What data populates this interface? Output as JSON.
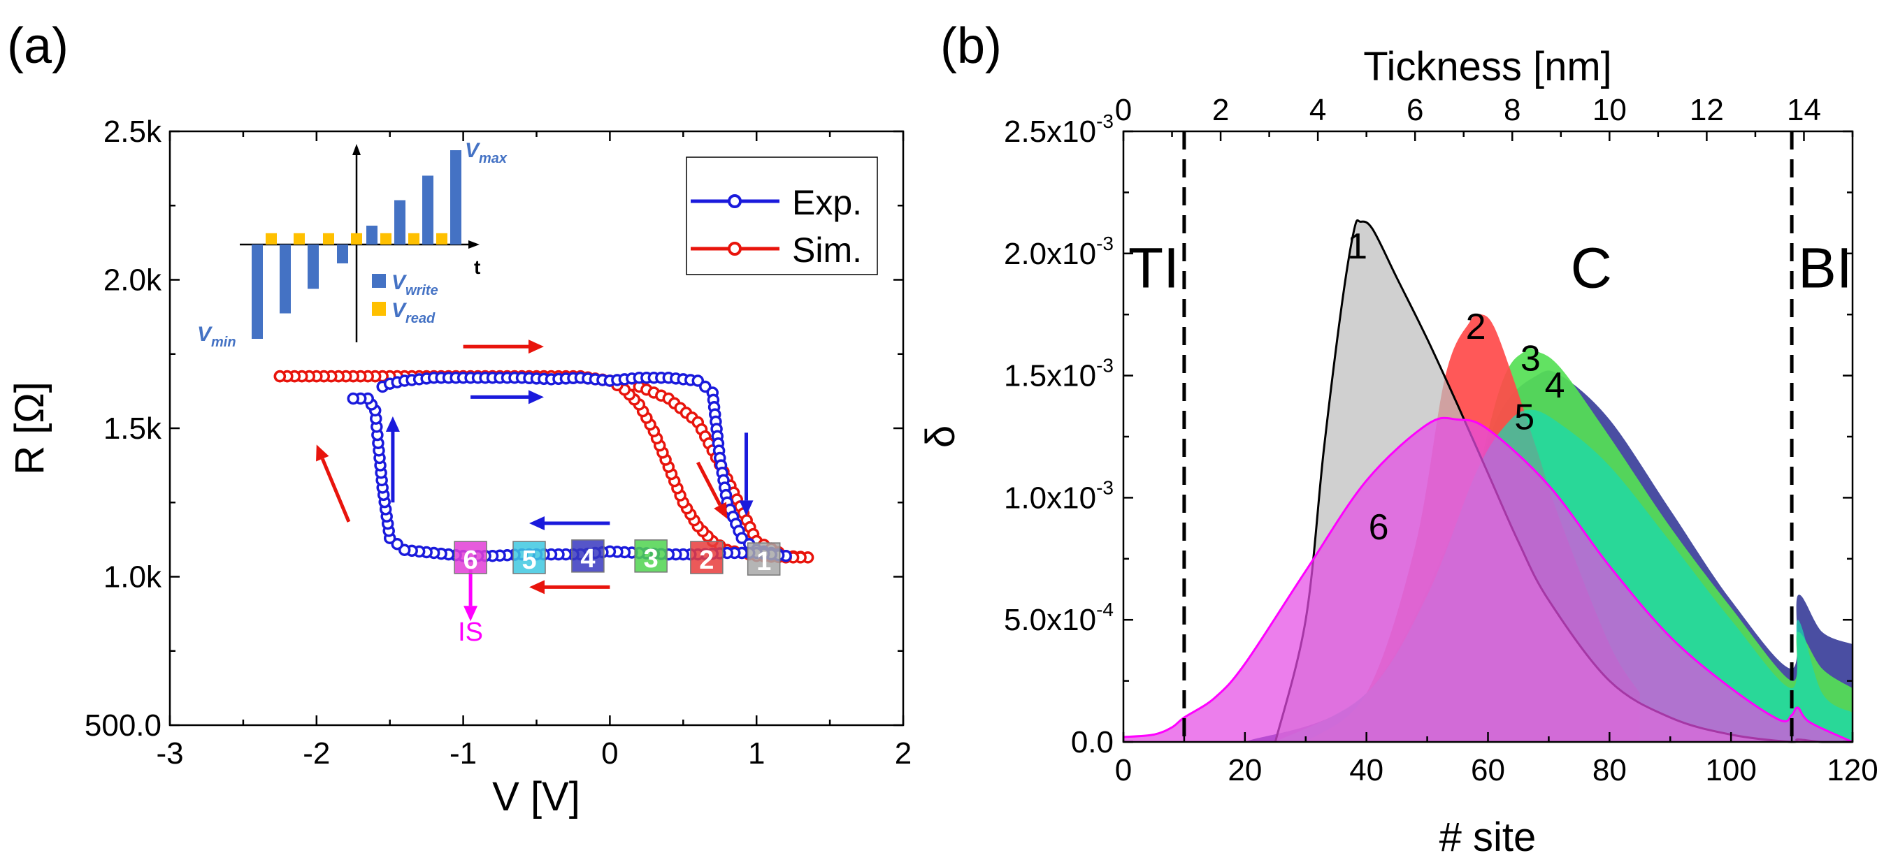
{
  "chart_data": [
    {
      "panel_label": "(a)",
      "type": "line",
      "xlabel": "V [V]",
      "ylabel": "R [Ω]",
      "xlim": [
        -3,
        2
      ],
      "ylim": [
        500,
        2500
      ],
      "xticks": [
        -3,
        -2,
        -1,
        0,
        1,
        2
      ],
      "xtick_labels": [
        "-3",
        "-2",
        "-1",
        "0",
        "1",
        "2"
      ],
      "yticks": [
        500,
        1000,
        1500,
        2000,
        2500
      ],
      "ytick_labels": [
        "500.0",
        "1.0k",
        "1.5k",
        "2.0k",
        "2.5k"
      ],
      "legend": {
        "position": "top-right",
        "entries": [
          "Exp.",
          "Sim."
        ]
      },
      "series": [
        {
          "name": "Exp.",
          "color": "#1a1adc",
          "marker": "open-circle",
          "x": [
            -1.55,
            -1.5,
            -1.4,
            -1.2,
            -1.0,
            -0.8,
            -0.6,
            -0.4,
            -0.2,
            0.0,
            0.2,
            0.4,
            0.6,
            0.7,
            0.75,
            0.8,
            0.9,
            1.0,
            1.1,
            1.2,
            1.1,
            1.0,
            0.8,
            0.6,
            0.4,
            0.2,
            0.0,
            -0.2,
            -0.4,
            -0.6,
            -0.8,
            -1.0,
            -1.2,
            -1.4,
            -1.5,
            -1.55,
            -1.58,
            -1.6,
            -1.65,
            -1.75
          ],
          "y": [
            1640,
            1650,
            1660,
            1670,
            1670,
            1670,
            1670,
            1665,
            1670,
            1660,
            1670,
            1670,
            1660,
            1620,
            1400,
            1250,
            1130,
            1090,
            1080,
            1070,
            1075,
            1080,
            1080,
            1075,
            1075,
            1080,
            1085,
            1075,
            1075,
            1075,
            1070,
            1070,
            1080,
            1090,
            1130,
            1300,
            1450,
            1560,
            1600,
            1600
          ]
        },
        {
          "name": "Sim.",
          "color": "#e8140c",
          "marker": "open-circle",
          "x": [
            -2.25,
            -2.1,
            -2.0,
            -1.9,
            -1.8,
            -1.7,
            -1.6,
            -1.5,
            -1.4,
            -1.3,
            -1.2,
            -1.0,
            -0.8,
            -0.6,
            -0.4,
            -0.2,
            0.0,
            0.2,
            0.4,
            0.6,
            0.8,
            1.0,
            1.2,
            1.35,
            1.2,
            1.0,
            0.8,
            0.7,
            0.6,
            0.5,
            0.4,
            0.3,
            0.2,
            0.1,
            0.0,
            -0.2,
            -0.4,
            -0.6,
            -0.8,
            -1.0,
            -1.2,
            -1.4,
            -1.6,
            -1.8,
            -2.0,
            -2.25
          ],
          "y": [
            1675,
            1675,
            1675,
            1675,
            1675,
            1675,
            1675,
            1675,
            1675,
            1675,
            1675,
            1675,
            1675,
            1675,
            1675,
            1670,
            1660,
            1640,
            1600,
            1520,
            1330,
            1120,
            1070,
            1065,
            1065,
            1070,
            1090,
            1120,
            1170,
            1250,
            1370,
            1490,
            1580,
            1630,
            1660,
            1675,
            1675,
            1675,
            1675,
            1675,
            1675,
            1675,
            1675,
            1675,
            1675,
            1675
          ]
        }
      ],
      "state_labels": [
        {
          "text": "6",
          "v": -0.95,
          "r": 1060,
          "color": "#e23ed6"
        },
        {
          "text": "5",
          "v": -0.55,
          "r": 1060,
          "color": "#3ec8e0"
        },
        {
          "text": "4",
          "v": -0.15,
          "r": 1065,
          "color": "#3838c0"
        },
        {
          "text": "3",
          "v": 0.28,
          "r": 1065,
          "color": "#4fd34f"
        },
        {
          "text": "2",
          "v": 0.66,
          "r": 1060,
          "color": "#e83c3c"
        },
        {
          "text": "1",
          "v": 1.05,
          "r": 1055,
          "color": "#a8a8a8"
        }
      ],
      "is_label": "IS",
      "is_color": "#ff00ff",
      "inset": {
        "t_label": "t",
        "write_label": "V",
        "write_sub": "write",
        "read_label": "V",
        "read_sub": "read",
        "vmax_label": "V",
        "vmax_sub": "max",
        "vmin_label": "V",
        "vmin_sub": "min",
        "write_color": "#4472c4",
        "read_color": "#ffc000",
        "write_pulses": [
          -1.0,
          -0.73,
          -0.47,
          -0.2,
          0.2,
          0.47,
          0.73,
          1.0
        ],
        "read_pulse": 0.12
      }
    },
    {
      "panel_label": "(b)",
      "type": "area",
      "xlabel": "# site",
      "ylabel": "δ",
      "top_xlabel": "Tickness [nm]",
      "xlim": [
        0,
        120
      ],
      "ylim": [
        0,
        0.0025
      ],
      "xticks": [
        0,
        20,
        40,
        60,
        80,
        100,
        120
      ],
      "xtick_labels": [
        "0",
        "20",
        "40",
        "60",
        "80",
        "100",
        "120"
      ],
      "top_xlim": [
        0,
        15
      ],
      "top_xticks": [
        0,
        2,
        4,
        6,
        8,
        10,
        12,
        14
      ],
      "top_xtick_labels": [
        "0",
        "2",
        "4",
        "6",
        "8",
        "10",
        "12",
        "14"
      ],
      "yticks": [
        0,
        0.0005,
        0.001,
        0.0015,
        0.002,
        0.0025
      ],
      "ytick_labels": [
        {
          "mant": "0.0",
          "exp": ""
        },
        {
          "mant": "5.0x10",
          "exp": "-4"
        },
        {
          "mant": "1.0x10",
          "exp": "-3"
        },
        {
          "mant": "1.5x10",
          "exp": "-3"
        },
        {
          "mant": "2.0x10",
          "exp": "-3"
        },
        {
          "mant": "2.5x10",
          "exp": "-3"
        }
      ],
      "vlines": [
        10,
        110
      ],
      "regions": [
        {
          "text": "TI",
          "x": 5
        },
        {
          "text": "C",
          "x": 77
        },
        {
          "text": "BI",
          "x": 115.5
        }
      ],
      "series": [
        {
          "name": "4",
          "color": "#3b3f9a",
          "label_x": 71,
          "label_y": 0.00141,
          "x": [
            20,
            40,
            55,
            62,
            68,
            72,
            80,
            90,
            100,
            110,
            111,
            115,
            120
          ],
          "y": [
            0,
            0.0002,
            0.0009,
            0.00135,
            0.0015,
            0.0015,
            0.00132,
            0.00095,
            0.00058,
            0.0003,
            0.0006,
            0.00045,
            0.0004
          ]
        },
        {
          "name": "3",
          "color": "#55e055",
          "label_x": 67,
          "label_y": 0.00152,
          "x": [
            30,
            45,
            55,
            62,
            66,
            68,
            72,
            80,
            90,
            100,
            110,
            111,
            115,
            120
          ],
          "y": [
            0,
            0.0002,
            0.0008,
            0.00145,
            0.0016,
            0.0016,
            0.00153,
            0.00125,
            0.00088,
            0.00055,
            0.00025,
            0.00045,
            0.0003,
            0.00022
          ]
        },
        {
          "name": "2",
          "color": "#ff4a4a",
          "label_x": 58,
          "label_y": 0.00165,
          "x": [
            30,
            40,
            48,
            53,
            57,
            59,
            61,
            64,
            68,
            72,
            80,
            85
          ],
          "y": [
            0,
            0.0002,
            0.0008,
            0.0015,
            0.00172,
            0.00175,
            0.0017,
            0.0015,
            0.0012,
            0.0009,
            0.0004,
            0.0002
          ]
        },
        {
          "name": "5",
          "color": "#19d9b0",
          "label_x": 66,
          "label_y": 0.00128,
          "x": [
            25,
            40,
            50,
            58,
            63,
            67,
            72,
            80,
            90,
            100,
            110,
            111,
            115,
            120
          ],
          "y": [
            0,
            0.0002,
            0.0006,
            0.0011,
            0.0013,
            0.00136,
            0.0013,
            0.00113,
            0.00082,
            0.0005,
            0.00022,
            0.0005,
            0.0002,
            0.00012
          ]
        },
        {
          "name": "1",
          "color": "#bebebe",
          "label_x": 38.5,
          "label_y": 0.00198,
          "x": [
            25,
            30,
            33,
            36,
            38,
            39,
            41,
            45,
            50,
            55,
            60,
            65,
            70,
            80,
            90,
            100,
            110,
            111,
            115,
            120
          ],
          "y": [
            0,
            0.0005,
            0.0012,
            0.0018,
            0.0021,
            0.00213,
            0.0021,
            0.0019,
            0.00165,
            0.00138,
            0.0011,
            0.00082,
            0.00058,
            0.00025,
            0.0001,
            3e-05,
            0,
            1e-05,
            0,
            0
          ]
        },
        {
          "name": "6",
          "color": "#e44ce4",
          "label_x": 42,
          "label_y": 0.00083,
          "x": [
            0,
            5,
            8,
            10,
            15,
            20,
            30,
            40,
            50,
            55,
            60,
            70,
            80,
            90,
            100,
            108,
            110,
            111,
            113,
            120
          ],
          "y": [
            2e-05,
            3e-05,
            6e-05,
            0.0001,
            0.00018,
            0.00032,
            0.0007,
            0.00107,
            0.0013,
            0.00132,
            0.00128,
            0.00105,
            0.00072,
            0.00043,
            0.00022,
            9e-05,
            0.00011,
            0.00014,
            8e-05,
            0
          ]
        }
      ]
    }
  ]
}
